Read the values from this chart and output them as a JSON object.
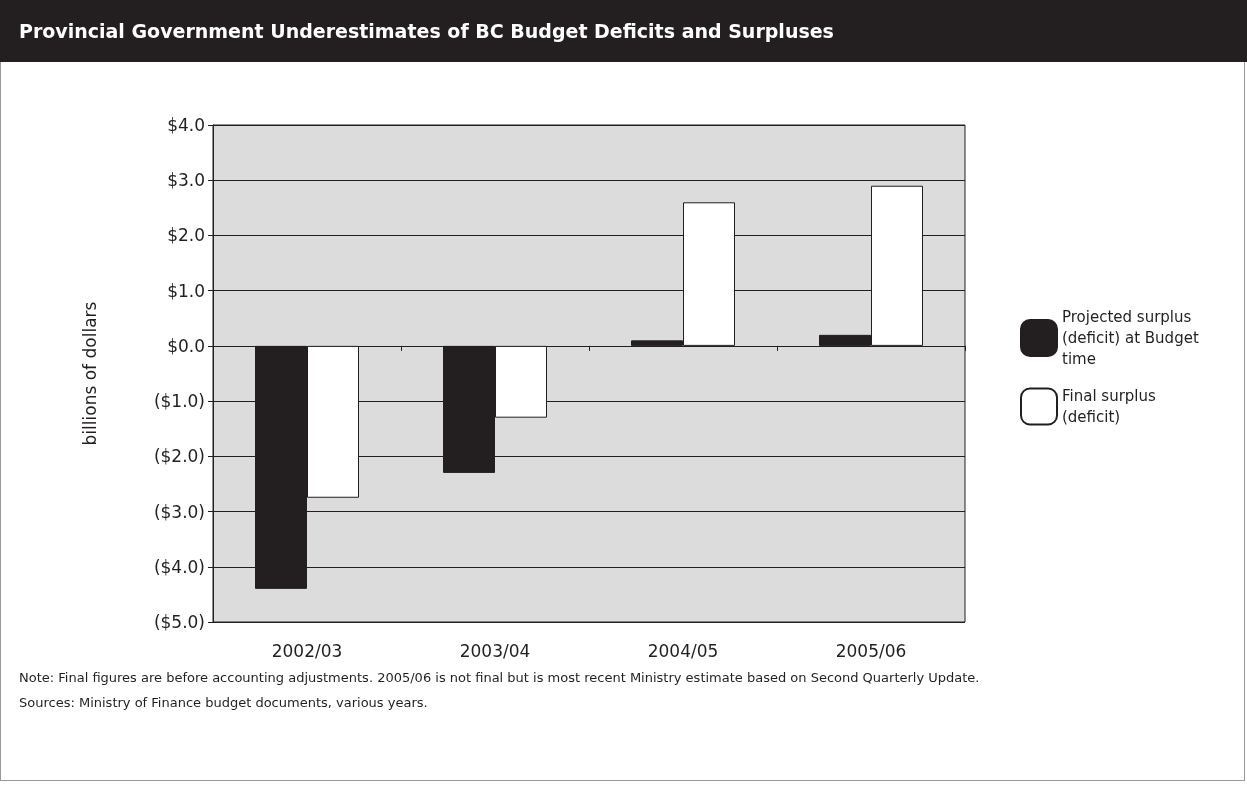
{
  "chart_data": {
    "type": "bar",
    "title": "Provincial Government Underestimates of BC Budget Deficits and Surpluses",
    "ylabel": "billions of dollars",
    "categories": [
      "2002/03",
      "2003/04",
      "2004/05",
      "2005/06"
    ],
    "series": [
      {
        "name": "Projected surplus (deficit) at Budget time",
        "color": "#231f20",
        "values": [
          -4.4,
          -2.3,
          0.1,
          0.2
        ]
      },
      {
        "name": "Final surplus (deficit)",
        "color": "#ffffff",
        "values": [
          -2.75,
          -1.3,
          2.6,
          2.9
        ]
      }
    ],
    "ylim": [
      -5,
      4
    ],
    "yticks": [
      {
        "value": -5,
        "label": "($5.0)"
      },
      {
        "value": -4,
        "label": "($4.0)"
      },
      {
        "value": -3,
        "label": "($3.0)"
      },
      {
        "value": -2,
        "label": "($2.0)"
      },
      {
        "value": -1,
        "label": "($1.0)"
      },
      {
        "value": 0,
        "label": "$0.0"
      },
      {
        "value": 1,
        "label": "$1.0"
      },
      {
        "value": 2,
        "label": "$2.0"
      },
      {
        "value": 3,
        "label": "$3.0"
      },
      {
        "value": 4,
        "label": "$4.0"
      }
    ],
    "grid": "y",
    "legend": "right",
    "annotations": [
      "Note: Final figures are before accounting adjustments. 2005/06 is not final but is most recent Ministry estimate based on Second Quarterly Update.",
      "Sources: Ministry of Finance budget documents, various years."
    ]
  }
}
